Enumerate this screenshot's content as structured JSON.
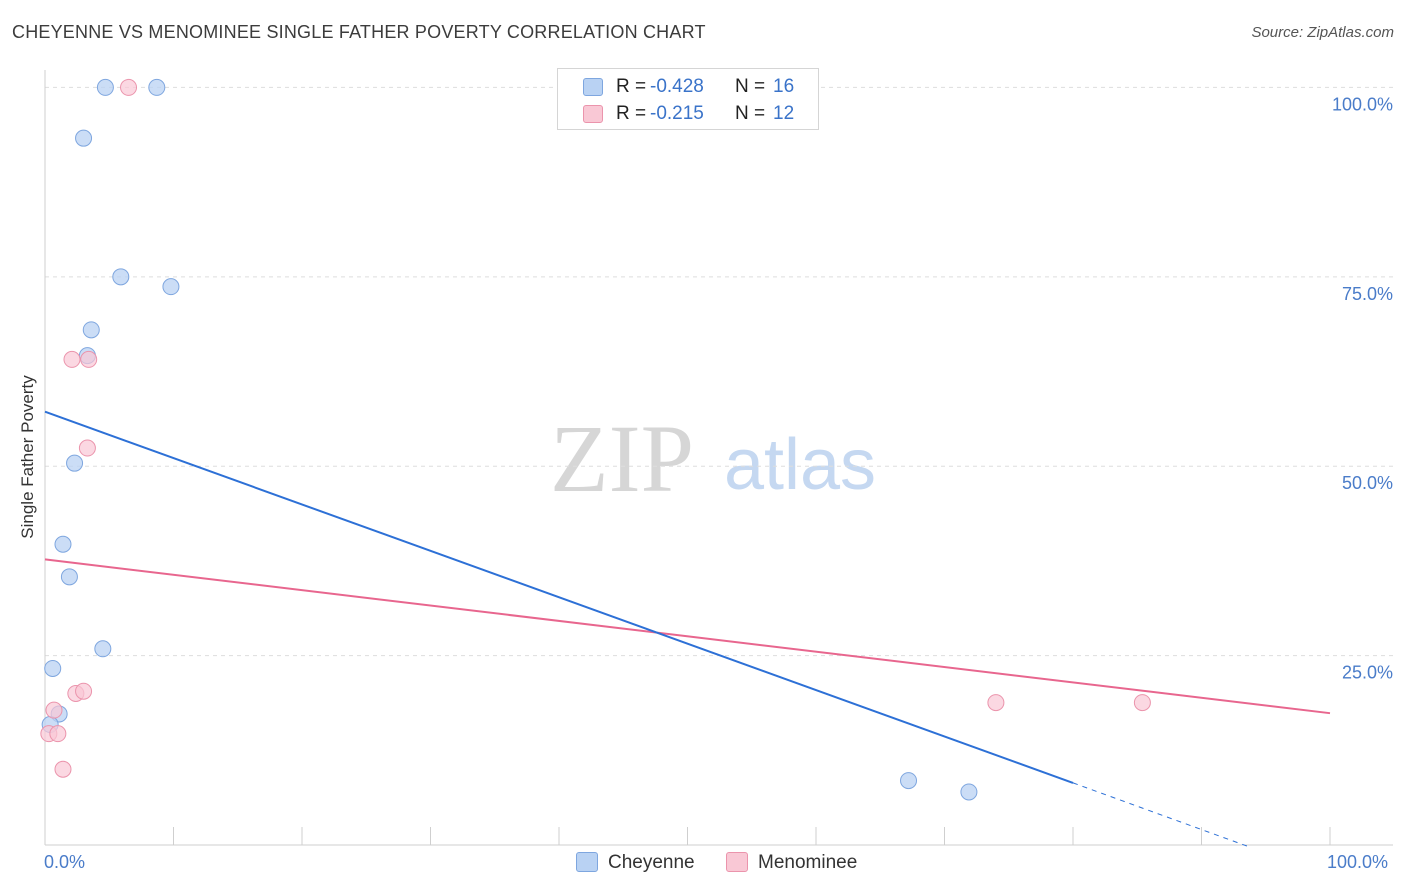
{
  "title": "CHEYENNE VS MENOMINEE SINGLE FATHER POVERTY CORRELATION CHART",
  "source": "Source: ZipAtlas.com",
  "watermark": {
    "zip": "ZIP",
    "atlas": "atlas"
  },
  "colors": {
    "cheyenne_fill": "#b9d2f3",
    "cheyenne_stroke": "#7ea6df",
    "cheyenne_line": "#2d70d6",
    "menominee_fill": "#f9c8d5",
    "menominee_stroke": "#eb94ac",
    "menominee_line": "#e8668e",
    "tick_label": "#4a7cc9",
    "grid": "#dddddd"
  },
  "legend": {
    "rows": [
      {
        "series": "Cheyenne",
        "r_label": "R =",
        "r_value": "-0.428",
        "n_label": "N =",
        "n_value": "16"
      },
      {
        "series": "Menominee",
        "r_label": "R =",
        "r_value": "-0.215",
        "n_label": "N =",
        "n_value": "12"
      }
    ]
  },
  "bottom_legend": [
    "Cheyenne",
    "Menominee"
  ],
  "chart_data": {
    "type": "scatter",
    "title": "CHEYENNE VS MENOMINEE SINGLE FATHER POVERTY CORRELATION CHART",
    "xlabel": "",
    "ylabel": "Single Father Poverty",
    "xlim": [
      0,
      100
    ],
    "ylim": [
      0,
      102.3
    ],
    "x_tick_labels": [
      "0.0%",
      "100.0%"
    ],
    "y_ticks": [
      25,
      50,
      75,
      100
    ],
    "y_tick_labels": [
      "25.0%",
      "50.0%",
      "75.0%",
      "100.0%"
    ],
    "grid": true,
    "series": [
      {
        "name": "Cheyenne",
        "points": [
          {
            "x": 4.7,
            "y": 100
          },
          {
            "x": 8.7,
            "y": 100
          },
          {
            "x": 3.0,
            "y": 93.3
          },
          {
            "x": 5.9,
            "y": 75.0
          },
          {
            "x": 9.8,
            "y": 73.7
          },
          {
            "x": 3.6,
            "y": 68.0
          },
          {
            "x": 3.3,
            "y": 64.6
          },
          {
            "x": 2.3,
            "y": 50.4
          },
          {
            "x": 1.4,
            "y": 39.7
          },
          {
            "x": 1.9,
            "y": 35.4
          },
          {
            "x": 4.5,
            "y": 25.9
          },
          {
            "x": 0.6,
            "y": 23.3
          },
          {
            "x": 1.1,
            "y": 17.3
          },
          {
            "x": 0.4,
            "y": 15.9
          },
          {
            "x": 67.2,
            "y": 8.5
          },
          {
            "x": 71.9,
            "y": 7.0
          }
        ],
        "trendline": {
          "x": [
            0,
            80
          ],
          "y": [
            57.2,
            8.2
          ],
          "dashed_extension": {
            "x": [
              80,
              93.8
            ],
            "y": [
              8.2,
              -0.3
            ]
          }
        }
      },
      {
        "name": "Menominee",
        "points": [
          {
            "x": 6.5,
            "y": 100
          },
          {
            "x": 2.1,
            "y": 64.1
          },
          {
            "x": 3.4,
            "y": 64.1
          },
          {
            "x": 3.3,
            "y": 52.4
          },
          {
            "x": 2.4,
            "y": 20.0
          },
          {
            "x": 3.0,
            "y": 20.3
          },
          {
            "x": 0.7,
            "y": 17.8
          },
          {
            "x": 0.3,
            "y": 14.7
          },
          {
            "x": 1.0,
            "y": 14.7
          },
          {
            "x": 1.4,
            "y": 10.0
          },
          {
            "x": 74.0,
            "y": 18.8
          },
          {
            "x": 85.4,
            "y": 18.8
          }
        ],
        "trendline": {
          "x": [
            0,
            100
          ],
          "y": [
            37.7,
            17.4
          ]
        }
      }
    ]
  }
}
